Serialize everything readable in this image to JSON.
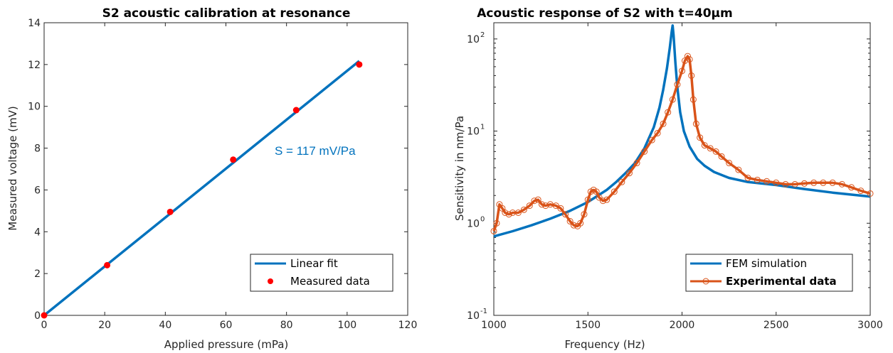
{
  "chart_data": [
    {
      "type": "scatter",
      "title": "S2 acoustic calibration at resonance",
      "xlabel": "Applied pressure (mPa)",
      "ylabel": "Measured voltage (mV)",
      "xlim": [
        0,
        120
      ],
      "ylim": [
        0,
        14
      ],
      "xticks": [
        0,
        20,
        40,
        60,
        80,
        100,
        120
      ],
      "yticks": [
        0,
        2,
        4,
        6,
        8,
        10,
        12,
        14
      ],
      "grid": false,
      "legend_position": "bottom-right",
      "annotation": "S = 117 mV/Pa",
      "series": [
        {
          "name": "Linear fit",
          "kind": "line",
          "color": "#0072BD",
          "x": [
            0,
            104
          ],
          "y": [
            0,
            12.17
          ]
        },
        {
          "name": "Measured data",
          "kind": "markers",
          "color": "#FF0000",
          "x": [
            0,
            20.8,
            41.6,
            62.4,
            83.2,
            104
          ],
          "y": [
            0,
            2.4,
            4.95,
            7.45,
            9.82,
            12.0
          ]
        }
      ]
    },
    {
      "type": "line",
      "title": "Acoustic response of S2 with t=40µm",
      "xlabel": "Frequency (Hz)",
      "ylabel": "Sensitivity in nm/Pa",
      "xlim": [
        1000,
        3000
      ],
      "ylim": [
        0.1,
        150
      ],
      "yscale": "log",
      "xticks": [
        1000,
        1500,
        2000,
        2500,
        3000
      ],
      "yticks": [
        0.1,
        1,
        10,
        100
      ],
      "ytick_labels": [
        {
          "base": "10",
          "exp": "-1"
        },
        {
          "base": "10",
          "exp": "0"
        },
        {
          "base": "10",
          "exp": "1"
        },
        {
          "base": "10",
          "exp": "2"
        }
      ],
      "grid": false,
      "legend_position": "bottom-right",
      "series": [
        {
          "name": "FEM simulation",
          "kind": "line",
          "color": "#0072BD",
          "x": [
            1000,
            1100,
            1200,
            1300,
            1400,
            1500,
            1600,
            1650,
            1700,
            1750,
            1800,
            1850,
            1880,
            1900,
            1920,
            1935,
            1945,
            1950,
            1955,
            1965,
            1975,
            1990,
            2010,
            2040,
            2080,
            2120,
            2170,
            2250,
            2350,
            2500,
            2650,
            2800,
            3000
          ],
          "y": [
            0.72,
            0.82,
            0.95,
            1.12,
            1.35,
            1.7,
            2.3,
            2.8,
            3.5,
            4.5,
            6.5,
            11,
            18,
            28,
            48,
            80,
            120,
            140,
            110,
            55,
            30,
            16,
            10,
            6.8,
            5.0,
            4.2,
            3.6,
            3.1,
            2.8,
            2.6,
            2.35,
            2.15,
            1.95
          ]
        },
        {
          "name": "Experimental data",
          "kind": "line-markers",
          "color": "#D95319",
          "x": [
            1000,
            1015,
            1030,
            1045,
            1060,
            1080,
            1100,
            1130,
            1160,
            1190,
            1215,
            1235,
            1255,
            1275,
            1300,
            1330,
            1355,
            1380,
            1405,
            1425,
            1445,
            1460,
            1480,
            1500,
            1515,
            1530,
            1545,
            1560,
            1580,
            1600,
            1640,
            1680,
            1720,
            1760,
            1800,
            1840,
            1870,
            1900,
            1925,
            1950,
            1975,
            2000,
            2015,
            2030,
            2040,
            2050,
            2060,
            2075,
            2095,
            2120,
            2150,
            2180,
            2210,
            2250,
            2300,
            2350,
            2400,
            2450,
            2500,
            2550,
            2600,
            2650,
            2700,
            2750,
            2800,
            2850,
            2900,
            2950,
            3000
          ],
          "y": [
            0.82,
            1.0,
            1.6,
            1.45,
            1.3,
            1.25,
            1.3,
            1.3,
            1.4,
            1.55,
            1.75,
            1.8,
            1.6,
            1.55,
            1.6,
            1.55,
            1.45,
            1.25,
            1.05,
            0.95,
            0.93,
            1.0,
            1.25,
            1.8,
            2.2,
            2.3,
            2.2,
            1.9,
            1.75,
            1.8,
            2.2,
            2.8,
            3.5,
            4.5,
            6.0,
            8.0,
            9.5,
            12,
            16,
            22,
            32,
            45,
            58,
            65,
            60,
            40,
            22,
            12,
            8.5,
            7.0,
            6.5,
            6.0,
            5.3,
            4.5,
            3.8,
            3.1,
            2.95,
            2.85,
            2.75,
            2.65,
            2.65,
            2.7,
            2.75,
            2.75,
            2.75,
            2.65,
            2.45,
            2.25,
            2.1
          ]
        }
      ]
    }
  ]
}
